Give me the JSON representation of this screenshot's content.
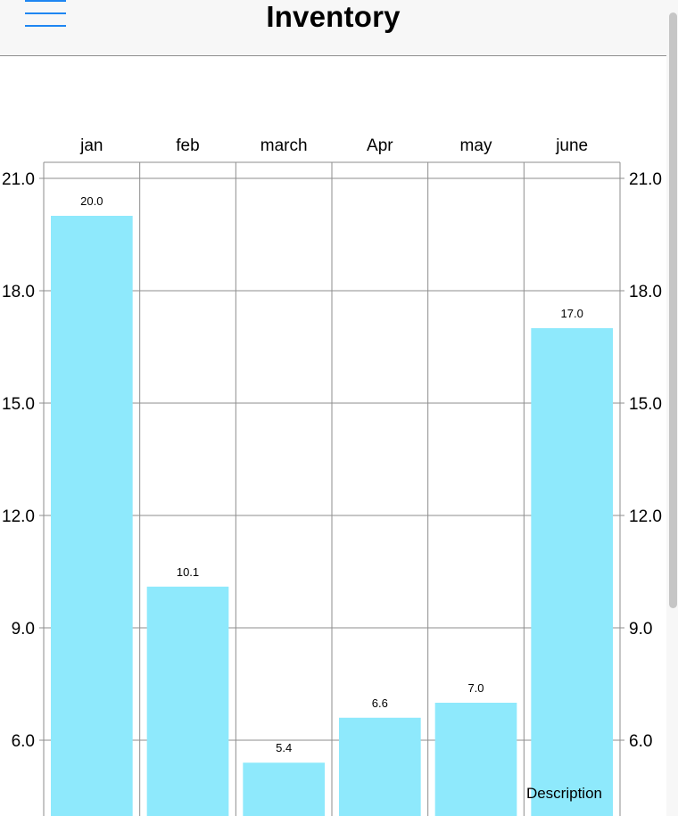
{
  "nav": {
    "title": "Inventory",
    "menu_icon": "hamburger-menu-icon"
  },
  "colors": {
    "bar": "#8ee9fc",
    "accent": "#1e86f2",
    "grid": "#8e8e8e"
  },
  "chart_data": {
    "type": "bar",
    "categories": [
      "jan",
      "feb",
      "march",
      "Apr",
      "may",
      "june"
    ],
    "values": [
      20.0,
      10.1,
      5.4,
      6.6,
      7.0,
      17.0
    ],
    "value_labels": [
      "20.0",
      "10.1",
      "5.4",
      "6.6",
      "7.0",
      "17.0"
    ],
    "y_ticks": [
      "21.0",
      "18.0",
      "15.0",
      "12.0",
      "9.0",
      "6.0"
    ],
    "y_tick_values": [
      21,
      18,
      15,
      12,
      9,
      6
    ],
    "ylim_visible": [
      3.4,
      21.0
    ],
    "category_axis_position": "top",
    "y_axis_position": "left and right",
    "grid": true,
    "description": "Description"
  }
}
